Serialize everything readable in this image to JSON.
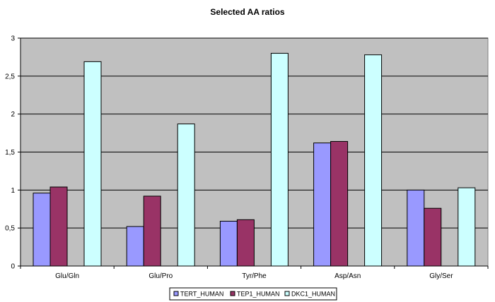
{
  "chart_data": {
    "type": "bar",
    "title": "Selected AA ratios",
    "xlabel": "",
    "ylabel": "",
    "categories": [
      "Glu/Gln",
      "Glu/Pro",
      "Tyr/Phe",
      "Asp/Asn",
      "Gly/Ser"
    ],
    "series": [
      {
        "name": "TERT_HUMAN",
        "color": "#9999ff",
        "values": [
          0.96,
          0.52,
          0.59,
          1.62,
          1.0
        ]
      },
      {
        "name": "TEP1_HUMAN",
        "color": "#993366",
        "values": [
          1.04,
          0.92,
          0.61,
          1.64,
          0.76
        ]
      },
      {
        "name": "DKC1_HUMAN",
        "color": "#ccffff",
        "values": [
          2.69,
          1.87,
          2.8,
          2.78,
          1.03
        ]
      }
    ],
    "ylim": [
      0,
      3
    ],
    "yticks": [
      "0",
      "0,5",
      "1",
      "1,5",
      "2",
      "2,5",
      "3"
    ],
    "grid": true,
    "legend_position": "bottom",
    "plot_background": "#c0c0c0"
  }
}
